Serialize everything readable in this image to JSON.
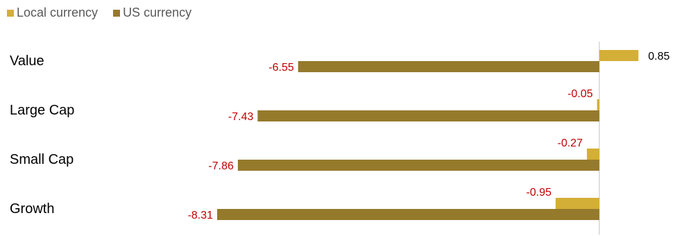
{
  "chart_data": {
    "type": "bar",
    "orientation": "horizontal",
    "categories": [
      "Value",
      "Large Cap",
      "Small Cap",
      "Growth"
    ],
    "series": [
      {
        "name": "Local currency",
        "color": "#D4AF37",
        "values": [
          0.85,
          -0.05,
          -0.27,
          -0.95
        ],
        "labels": [
          "0.85",
          "-0.05",
          "-0.27",
          "-0.95"
        ]
      },
      {
        "name": "US currency",
        "color": "#967A2C",
        "values": [
          -6.55,
          -7.43,
          -7.86,
          -8.31
        ],
        "labels": [
          "-6.55",
          "-7.43",
          "-7.86",
          "-8.31"
        ]
      }
    ],
    "title": "",
    "xlabel": "",
    "ylabel": "",
    "legend": "top-left",
    "grid": false,
    "colors": {
      "positive_label": "#000000",
      "negative_label": "#C00000",
      "category_text": "#000000",
      "axis": "#BFBFBF"
    }
  }
}
